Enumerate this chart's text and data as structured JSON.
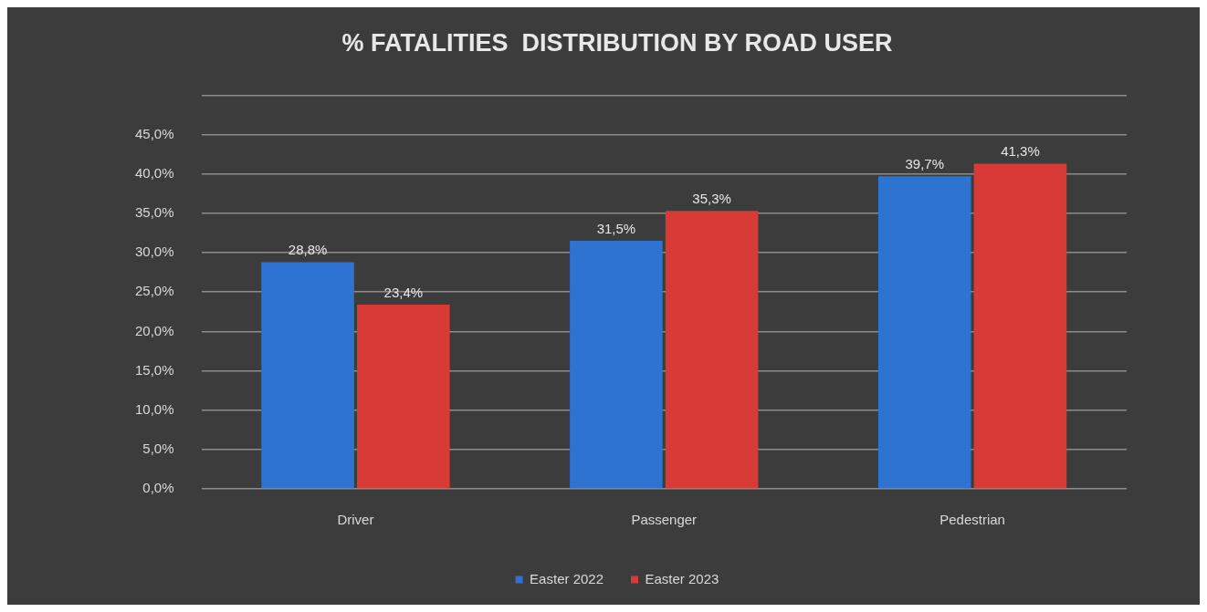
{
  "chart_data": {
    "type": "bar",
    "title": "% FATALITIES  DISTRIBUTION BY ROAD USER",
    "categories": [
      "Driver",
      "Passenger",
      "Pedestrian"
    ],
    "series": [
      {
        "name": "Easter 2022",
        "color": "#2f73d1",
        "values": [
          28.8,
          31.5,
          39.7
        ],
        "value_labels": [
          "28,8%",
          "31,5%",
          "39,7%"
        ]
      },
      {
        "name": "Easter 2023",
        "color": "#d83a35",
        "values": [
          23.4,
          35.3,
          41.3
        ],
        "value_labels": [
          "23,4%",
          "35,3%",
          "41,3%"
        ]
      }
    ],
    "ylim": [
      0,
      50
    ],
    "yticks": [
      {
        "value": 0,
        "label": "0,0%"
      },
      {
        "value": 5,
        "label": "5,0%"
      },
      {
        "value": 10,
        "label": "10,0%"
      },
      {
        "value": 15,
        "label": "15,0%"
      },
      {
        "value": 20,
        "label": "20,0%"
      },
      {
        "value": 25,
        "label": "25,0%"
      },
      {
        "value": 30,
        "label": "30,0%"
      },
      {
        "value": 35,
        "label": "35,0%"
      },
      {
        "value": 40,
        "label": "40,0%"
      },
      {
        "value": 45,
        "label": "45,0%"
      },
      {
        "value": 50,
        "label": null
      }
    ],
    "grid": "y",
    "legend": "bottom"
  }
}
